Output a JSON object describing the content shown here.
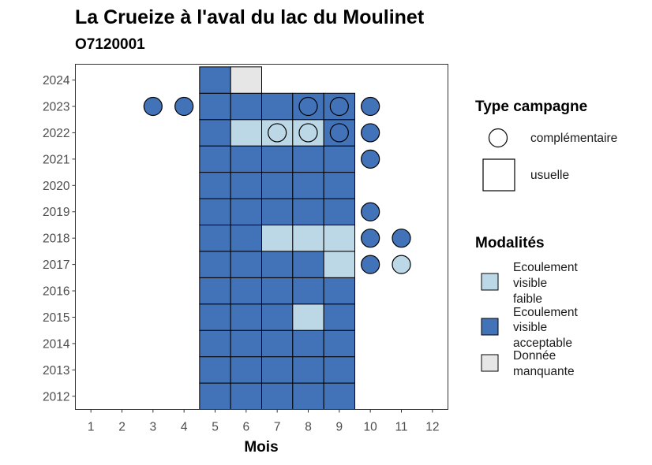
{
  "chart_data": {
    "type": "heatmap",
    "title": "La Crueize à l'aval du lac du Moulinet",
    "subtitle": "O7120001",
    "xlabel": "Mois",
    "ylabel": "",
    "x_ticks": [
      "1",
      "2",
      "3",
      "4",
      "5",
      "6",
      "7",
      "8",
      "9",
      "10",
      "11",
      "12"
    ],
    "y_ticks": [
      "2012",
      "2013",
      "2014",
      "2015",
      "2016",
      "2017",
      "2018",
      "2019",
      "2020",
      "2021",
      "2022",
      "2023",
      "2024"
    ],
    "xlim": [
      0.5,
      12.5
    ],
    "ylim": [
      2011.5,
      2024.6
    ],
    "grid": false,
    "colors": {
      "faible": "#bcd7e6",
      "acceptable": "#4273b8",
      "manquante": "#e6e6e6"
    },
    "usuelle": [
      {
        "year": 2012,
        "month": 5,
        "modalite": "acceptable"
      },
      {
        "year": 2012,
        "month": 6,
        "modalite": "acceptable"
      },
      {
        "year": 2012,
        "month": 7,
        "modalite": "acceptable"
      },
      {
        "year": 2012,
        "month": 8,
        "modalite": "acceptable"
      },
      {
        "year": 2012,
        "month": 9,
        "modalite": "acceptable"
      },
      {
        "year": 2013,
        "month": 5,
        "modalite": "acceptable"
      },
      {
        "year": 2013,
        "month": 6,
        "modalite": "acceptable"
      },
      {
        "year": 2013,
        "month": 7,
        "modalite": "acceptable"
      },
      {
        "year": 2013,
        "month": 8,
        "modalite": "acceptable"
      },
      {
        "year": 2013,
        "month": 9,
        "modalite": "acceptable"
      },
      {
        "year": 2014,
        "month": 5,
        "modalite": "acceptable"
      },
      {
        "year": 2014,
        "month": 6,
        "modalite": "acceptable"
      },
      {
        "year": 2014,
        "month": 7,
        "modalite": "acceptable"
      },
      {
        "year": 2014,
        "month": 8,
        "modalite": "acceptable"
      },
      {
        "year": 2014,
        "month": 9,
        "modalite": "acceptable"
      },
      {
        "year": 2015,
        "month": 5,
        "modalite": "acceptable"
      },
      {
        "year": 2015,
        "month": 6,
        "modalite": "acceptable"
      },
      {
        "year": 2015,
        "month": 7,
        "modalite": "acceptable"
      },
      {
        "year": 2015,
        "month": 8,
        "modalite": "faible"
      },
      {
        "year": 2015,
        "month": 9,
        "modalite": "acceptable"
      },
      {
        "year": 2016,
        "month": 5,
        "modalite": "acceptable"
      },
      {
        "year": 2016,
        "month": 6,
        "modalite": "acceptable"
      },
      {
        "year": 2016,
        "month": 7,
        "modalite": "acceptable"
      },
      {
        "year": 2016,
        "month": 8,
        "modalite": "acceptable"
      },
      {
        "year": 2016,
        "month": 9,
        "modalite": "acceptable"
      },
      {
        "year": 2017,
        "month": 5,
        "modalite": "acceptable"
      },
      {
        "year": 2017,
        "month": 6,
        "modalite": "acceptable"
      },
      {
        "year": 2017,
        "month": 7,
        "modalite": "acceptable"
      },
      {
        "year": 2017,
        "month": 8,
        "modalite": "acceptable"
      },
      {
        "year": 2017,
        "month": 9,
        "modalite": "faible"
      },
      {
        "year": 2018,
        "month": 5,
        "modalite": "acceptable"
      },
      {
        "year": 2018,
        "month": 6,
        "modalite": "acceptable"
      },
      {
        "year": 2018,
        "month": 7,
        "modalite": "faible"
      },
      {
        "year": 2018,
        "month": 8,
        "modalite": "faible"
      },
      {
        "year": 2018,
        "month": 9,
        "modalite": "faible"
      },
      {
        "year": 2019,
        "month": 5,
        "modalite": "acceptable"
      },
      {
        "year": 2019,
        "month": 6,
        "modalite": "acceptable"
      },
      {
        "year": 2019,
        "month": 7,
        "modalite": "acceptable"
      },
      {
        "year": 2019,
        "month": 8,
        "modalite": "acceptable"
      },
      {
        "year": 2019,
        "month": 9,
        "modalite": "acceptable"
      },
      {
        "year": 2020,
        "month": 5,
        "modalite": "acceptable"
      },
      {
        "year": 2020,
        "month": 6,
        "modalite": "acceptable"
      },
      {
        "year": 2020,
        "month": 7,
        "modalite": "acceptable"
      },
      {
        "year": 2020,
        "month": 8,
        "modalite": "acceptable"
      },
      {
        "year": 2020,
        "month": 9,
        "modalite": "acceptable"
      },
      {
        "year": 2021,
        "month": 5,
        "modalite": "acceptable"
      },
      {
        "year": 2021,
        "month": 6,
        "modalite": "acceptable"
      },
      {
        "year": 2021,
        "month": 7,
        "modalite": "acceptable"
      },
      {
        "year": 2021,
        "month": 8,
        "modalite": "acceptable"
      },
      {
        "year": 2021,
        "month": 9,
        "modalite": "acceptable"
      },
      {
        "year": 2022,
        "month": 5,
        "modalite": "acceptable"
      },
      {
        "year": 2022,
        "month": 6,
        "modalite": "faible"
      },
      {
        "year": 2022,
        "month": 7,
        "modalite": "faible"
      },
      {
        "year": 2022,
        "month": 8,
        "modalite": "faible"
      },
      {
        "year": 2022,
        "month": 9,
        "modalite": "acceptable"
      },
      {
        "year": 2023,
        "month": 5,
        "modalite": "acceptable"
      },
      {
        "year": 2023,
        "month": 6,
        "modalite": "acceptable"
      },
      {
        "year": 2023,
        "month": 7,
        "modalite": "acceptable"
      },
      {
        "year": 2023,
        "month": 8,
        "modalite": "acceptable"
      },
      {
        "year": 2023,
        "month": 9,
        "modalite": "acceptable"
      },
      {
        "year": 2024,
        "month": 5,
        "modalite": "acceptable"
      },
      {
        "year": 2024,
        "month": 6,
        "modalite": "manquante"
      }
    ],
    "complementaire": [
      {
        "year": 2023,
        "month": 3,
        "modalite": "acceptable"
      },
      {
        "year": 2023,
        "month": 4,
        "modalite": "acceptable"
      },
      {
        "year": 2023,
        "month": 8,
        "modalite": "acceptable"
      },
      {
        "year": 2023,
        "month": 9,
        "modalite": "acceptable"
      },
      {
        "year": 2023,
        "month": 10,
        "modalite": "acceptable"
      },
      {
        "year": 2022,
        "month": 7,
        "modalite": "faible"
      },
      {
        "year": 2022,
        "month": 8,
        "modalite": "faible"
      },
      {
        "year": 2022,
        "month": 9,
        "modalite": "acceptable"
      },
      {
        "year": 2022,
        "month": 10,
        "modalite": "acceptable"
      },
      {
        "year": 2021,
        "month": 10,
        "modalite": "acceptable"
      },
      {
        "year": 2019,
        "month": 10,
        "modalite": "acceptable"
      },
      {
        "year": 2018,
        "month": 10,
        "modalite": "acceptable"
      },
      {
        "year": 2018,
        "month": 11,
        "modalite": "acceptable"
      },
      {
        "year": 2017,
        "month": 10,
        "modalite": "acceptable"
      },
      {
        "year": 2017,
        "month": 11,
        "modalite": "faible"
      }
    ],
    "legend": {
      "type_title": "Type campagne",
      "type_items": [
        {
          "key": "complementaire",
          "label": "complémentaire"
        },
        {
          "key": "usuelle",
          "label": "usuelle"
        }
      ],
      "mod_title": "Modalités",
      "mod_items": [
        {
          "key": "faible",
          "lines": [
            "Ecoulement",
            "visible",
            "faible"
          ]
        },
        {
          "key": "acceptable",
          "lines": [
            "Ecoulement",
            "visible",
            "acceptable"
          ]
        },
        {
          "key": "manquante",
          "lines": [
            "Donnée",
            "manquante"
          ]
        }
      ],
      "placement": "right"
    }
  }
}
